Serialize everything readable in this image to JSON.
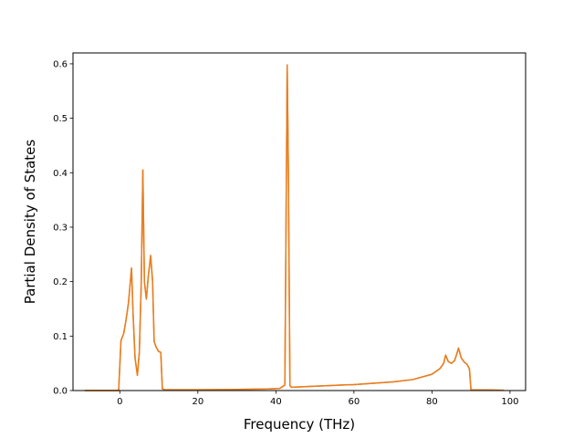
{
  "chart_data": {
    "type": "line",
    "title": "",
    "xlabel": "Frequency (THz)",
    "ylabel": "Partial Density of States",
    "xlim": [
      -12,
      104
    ],
    "ylim": [
      0,
      0.62
    ],
    "xticks": [
      "0",
      "20",
      "40",
      "60",
      "80",
      "100"
    ],
    "yticks": [
      "0.0",
      "0.1",
      "0.2",
      "0.3",
      "0.4",
      "0.5",
      "0.6"
    ],
    "grid": false,
    "series": [
      {
        "color": "#ff7f0e",
        "x": [
          -9,
          -0.3,
          0.3,
          1.0,
          1.6,
          2.2,
          2.7,
          3.0,
          3.4,
          3.9,
          4.5,
          5.0,
          5.5,
          5.9,
          6.3,
          6.8,
          7.3,
          7.9,
          8.4,
          8.8,
          9.3,
          9.9,
          10.5,
          10.9,
          11.5,
          20,
          30,
          38,
          41,
          42.3,
          42.9,
          43.2,
          43.6,
          44.0,
          50,
          60,
          70,
          75,
          80,
          82,
          83,
          83.5,
          84.2,
          85,
          85.8,
          86.4,
          86.8,
          87.5,
          88.3,
          89.0,
          89.6,
          90.0,
          95,
          98.5
        ],
        "y": [
          0,
          0,
          0.092,
          0.105,
          0.13,
          0.16,
          0.2,
          0.225,
          0.14,
          0.06,
          0.028,
          0.07,
          0.2,
          0.405,
          0.2,
          0.168,
          0.21,
          0.248,
          0.2,
          0.09,
          0.08,
          0.072,
          0.07,
          0.003,
          0.0015,
          0.0015,
          0.002,
          0.003,
          0.004,
          0.01,
          0.598,
          0.4,
          0.009,
          0.006,
          0.008,
          0.011,
          0.016,
          0.02,
          0.03,
          0.04,
          0.05,
          0.065,
          0.053,
          0.05,
          0.055,
          0.068,
          0.078,
          0.06,
          0.052,
          0.048,
          0.04,
          0.0015,
          0.001,
          0.0005
        ]
      },
      {
        "color": "#e67e22",
        "x": [
          -9,
          -0.3,
          0.3,
          1.0,
          1.6,
          2.2,
          2.7,
          3.0,
          3.4,
          3.9,
          4.5,
          5.0,
          5.5,
          5.9,
          6.3,
          6.8,
          7.3,
          7.9,
          8.4,
          8.8,
          9.3,
          9.9,
          10.5,
          10.9,
          11.5,
          20,
          30,
          38,
          41,
          42.3,
          42.9,
          43.2,
          43.6,
          44.0,
          50,
          60,
          70,
          75,
          80,
          82,
          83,
          83.5,
          84.2,
          85,
          85.8,
          86.4,
          86.8,
          87.5,
          88.3,
          89.0,
          89.6,
          90.0,
          95,
          98.5
        ],
        "y": [
          0,
          0,
          0.092,
          0.105,
          0.13,
          0.16,
          0.2,
          0.225,
          0.14,
          0.06,
          0.028,
          0.07,
          0.2,
          0.405,
          0.2,
          0.168,
          0.21,
          0.248,
          0.2,
          0.09,
          0.08,
          0.072,
          0.07,
          0.003,
          0.0015,
          0.0015,
          0.002,
          0.003,
          0.004,
          0.01,
          0.598,
          0.4,
          0.009,
          0.006,
          0.008,
          0.011,
          0.016,
          0.02,
          0.03,
          0.04,
          0.05,
          0.065,
          0.053,
          0.05,
          0.055,
          0.068,
          0.078,
          0.06,
          0.052,
          0.048,
          0.04,
          0.0015,
          0.001,
          0.0005
        ]
      }
    ]
  }
}
